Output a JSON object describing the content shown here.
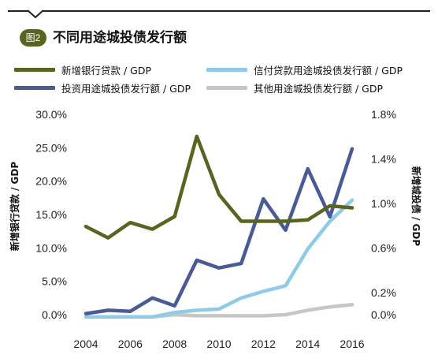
{
  "figure": {
    "badge": "图2",
    "title": "不同用途城投债发行额"
  },
  "chart_data": {
    "type": "line",
    "x": [
      2004,
      2005,
      2006,
      2007,
      2008,
      2009,
      2010,
      2011,
      2012,
      2013,
      2014,
      2015,
      2016
    ],
    "xticks": [
      "2004",
      "2006",
      "2008",
      "2010",
      "2012",
      "2014",
      "2016"
    ],
    "xlim": [
      2003.7,
      2016.6
    ],
    "left_axis": {
      "label": "新增银行贷款 / GDP",
      "ylim": [
        0,
        30
      ],
      "ticks": [
        "0.0%",
        "5.0%",
        "10.0%",
        "15.0%",
        "20.0%",
        "25.0%",
        "30.0%"
      ]
    },
    "right_axis": {
      "label": "新增城投债 / GDP",
      "ylim": [
        0,
        1.8
      ],
      "ticks": [
        "0.0%",
        "0.2%",
        "0.6%",
        "1.0%",
        "1.4%",
        "1.8%"
      ]
    },
    "series": [
      {
        "name": "新增银行贷款 / GDP",
        "axis": "left",
        "color": "#5a6420",
        "values": [
          13.2,
          11.5,
          13.8,
          12.8,
          14.7,
          26.7,
          18.0,
          14.0,
          14.0,
          14.0,
          14.2,
          16.3,
          16.0
        ]
      },
      {
        "name": "信付贷款用途城投债发行额 / GDP",
        "axis": "right",
        "color": "#8fcbe6",
        "values": [
          -0.02,
          -0.02,
          -0.02,
          -0.02,
          0.02,
          0.04,
          0.05,
          0.15,
          0.21,
          0.26,
          0.59,
          0.84,
          1.03
        ]
      },
      {
        "name": "投资用途城投债发行额 / GDP",
        "axis": "right",
        "color": "#4a5a96",
        "values": [
          0.01,
          0.04,
          0.03,
          0.15,
          0.08,
          0.49,
          0.42,
          0.46,
          1.04,
          0.76,
          1.31,
          0.88,
          1.49
        ]
      },
      {
        "name": "其他用途城投债发行额 / GDP",
        "axis": "right",
        "color": "#c6c6c6",
        "values": [
          -0.02,
          -0.02,
          -0.02,
          -0.02,
          0.0,
          -0.01,
          -0.01,
          -0.01,
          -0.01,
          0.0,
          0.04,
          0.07,
          0.09
        ]
      }
    ]
  }
}
